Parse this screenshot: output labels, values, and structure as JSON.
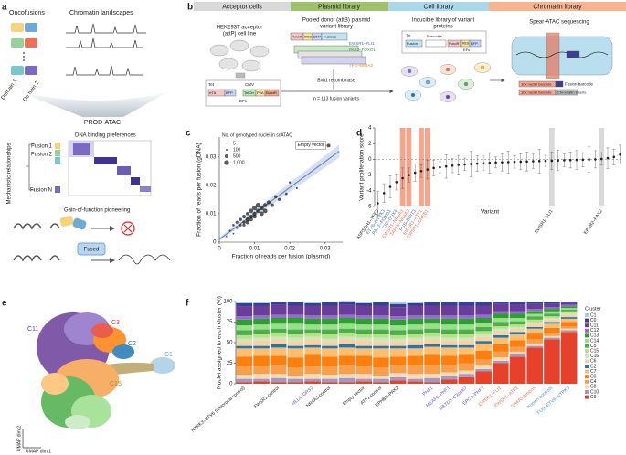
{
  "panel_labels": [
    "a",
    "b",
    "c",
    "d",
    "e",
    "f"
  ],
  "panel_a": {
    "oncofusions": "Oncofusions",
    "chromatin_landscapes": "Chromatin landscapes",
    "domain_1": "Domain 1",
    "domain_2": "Domain 2",
    "method": "PROD-ATAC",
    "dna_binding": "DNA binding preferences",
    "fusion_1": "Fusion 1",
    "fusion_2": "Fusion 2",
    "fusion_n": "Fusion N",
    "mechanistic": "Mechanistic relationships",
    "pioneering": "Gain-of-function pioneering",
    "fused": "Fused"
  },
  "panel_b": {
    "steps": [
      "Acceptor cells",
      "Plasmid library",
      "Cell library",
      "Chromatin library"
    ],
    "acceptor": [
      "HEK293T acceptor",
      "(attP) cell line"
    ],
    "donor": [
      "Pooled donor (attB) plasmid",
      "variant library"
    ],
    "inducible": [
      "Inducible library of variant",
      "proteins"
    ],
    "spear": "Spear-ATAC sequencing",
    "recombinase": "Bxb1 recombinase",
    "n_variants": "n = 113 fusion variants",
    "construct_labels": [
      "Tet",
      "CMV",
      "EFs",
      "rtTA",
      "BFP",
      "TetOn",
      "P2A",
      "BlastR"
    ],
    "donor_labels": [
      "PuroR",
      "IRES",
      "BFP",
      "Fusions",
      "EWSR1–FLI1",
      "PAX3–FOXO1",
      "TFG–NR4A3"
    ],
    "inducible_labels": [
      "Tet",
      "Fusion",
      "Barcodes",
      "PuroR",
      "IRES",
      "BFP",
      "EFs"
    ],
    "spear_labels": [
      "Fusion barcode",
      "10x nuclei barcode",
      "Chromatin inserts"
    ]
  },
  "panel_e": {
    "clusters": [
      "C3",
      "C2",
      "C1",
      "C11",
      "C15"
    ],
    "dim1": "UMAP dim 1",
    "dim2": "UMAP dim 2"
  },
  "chart_data": [
    {
      "type": "scatter",
      "xlabel": "Fraction of reads per fusion (plasmid)",
      "ylabel": "Fraction of reads per fusion (gDNA)",
      "xlim": [
        0,
        0.035
      ],
      "ylim": [
        0,
        0.037
      ],
      "xticks": [
        0,
        0.01,
        0.02,
        0.03
      ],
      "yticks": [
        0,
        0.01,
        0.02,
        0.03
      ],
      "color": "#222222",
      "x": [
        0.002,
        0.003,
        0.004,
        0.004,
        0.005,
        0.005,
        0.006,
        0.006,
        0.007,
        0.007,
        0.007,
        0.008,
        0.008,
        0.008,
        0.009,
        0.009,
        0.009,
        0.01,
        0.01,
        0.01,
        0.011,
        0.011,
        0.012,
        0.012,
        0.013,
        0.013,
        0.014,
        0.015,
        0.016,
        0.017,
        0.019,
        0.02,
        0.022,
        0.031
      ],
      "y": [
        0.002,
        0.004,
        0.003,
        0.006,
        0.005,
        0.007,
        0.006,
        0.008,
        0.007,
        0.009,
        0.006,
        0.008,
        0.01,
        0.007,
        0.009,
        0.011,
        0.008,
        0.01,
        0.012,
        0.009,
        0.011,
        0.013,
        0.01,
        0.012,
        0.013,
        0.011,
        0.014,
        0.013,
        0.016,
        0.015,
        0.017,
        0.021,
        0.019,
        0.034
      ],
      "sizes": [
        50,
        100,
        80,
        200,
        150,
        300,
        250,
        400,
        350,
        500,
        300,
        600,
        450,
        700,
        500,
        800,
        600,
        650,
        900,
        700,
        750,
        1000,
        800,
        900,
        700,
        850,
        600,
        500,
        400,
        300,
        200,
        150,
        100,
        500
      ],
      "fit": {
        "x": [
          0,
          0.034
        ],
        "y": [
          0.001,
          0.032
        ],
        "color": "#5b7fc0"
      },
      "annotation": "Empty vector",
      "legend_title": "No. of genotyped nuclei in scATAC",
      "legend_sizes": [
        5,
        100,
        500,
        {
          "value": 1000,
          "label": "1,000"
        }
      ]
    },
    {
      "type": "dot",
      "xlabel": "Variant",
      "ylabel": "Variant proliferation score",
      "ylim": [
        -6,
        4
      ],
      "yticks": [
        -6,
        -4,
        -2,
        0,
        2,
        4
      ],
      "color": "#222222",
      "categories": [
        "ASPSCR1–TFE3",
        "ETV6–NTRK3",
        "PAX3–FOXO1",
        "CIC–DUX4",
        "EWSR1–NR4A3",
        "TAF15–NR4A3",
        "FUS–DDIT3",
        "EWSR1–ATF1",
        "EWSR1–CREB1",
        null,
        null,
        null,
        null,
        null,
        null,
        null,
        null,
        null,
        null,
        null,
        null,
        null,
        null,
        null,
        null,
        null,
        null,
        null,
        "EWSR1–FLI1",
        null,
        null,
        null,
        null,
        null,
        null,
        null,
        "EPHB2–PAX2",
        null,
        null,
        null
      ],
      "label_colors": [
        "#222222",
        "#4a6fb5",
        "#4a6fb5",
        "#4a6fb5",
        "#e8735a",
        "#e8735a",
        "#4a6fb5",
        "#e8735a",
        "#e8735a",
        null,
        null,
        null,
        null,
        null,
        null,
        null,
        null,
        null,
        null,
        null,
        null,
        null,
        null,
        null,
        null,
        null,
        null,
        null,
        "#222222",
        null,
        null,
        null,
        null,
        null,
        null,
        null,
        "#222222",
        null,
        null,
        null
      ],
      "bands": [
        null,
        null,
        null,
        null,
        "#f4a58e",
        "#f4a58e",
        null,
        "#f4a58e",
        "#f4a58e",
        null,
        null,
        null,
        null,
        null,
        null,
        null,
        null,
        null,
        null,
        null,
        null,
        null,
        null,
        null,
        null,
        null,
        null,
        null,
        "#d9d9d9",
        null,
        null,
        null,
        null,
        null,
        null,
        null,
        "#d9d9d9",
        null,
        null,
        null
      ],
      "values": [
        -5.6,
        -4.3,
        -3.5,
        -2.9,
        -2.4,
        -2.0,
        -1.7,
        -1.5,
        -1.3,
        -1.1,
        -1.0,
        -0.9,
        -0.8,
        -0.7,
        -0.65,
        -0.6,
        -0.55,
        -0.5,
        -0.45,
        -0.4,
        -0.38,
        -0.35,
        -0.32,
        -0.3,
        -0.28,
        -0.25,
        -0.22,
        -0.2,
        -0.18,
        -0.15,
        -0.12,
        -0.1,
        -0.08,
        -0.05,
        -0.02,
        0.0,
        0.05,
        0.15,
        0.3,
        0.6
      ],
      "errors": [
        1.5,
        1.2,
        1.4,
        1.0,
        1.3,
        0.9,
        1.1,
        0.8,
        1.2,
        1.0,
        0.7,
        1.5,
        0.9,
        1.2,
        0.8,
        1.6,
        1.0,
        0.9,
        1.3,
        0.7,
        1.1,
        1.4,
        0.8,
        1.0,
        1.2,
        0.9,
        1.5,
        0.7,
        1.1,
        1.3,
        0.8,
        1.0,
        1.2,
        0.9,
        1.6,
        1.1,
        0.8,
        1.3,
        1.0,
        1.2
      ]
    },
    {
      "type": "stacked_bar",
      "ylabel": "Nuclei assigned to each cluster (%)",
      "legend_title": "Cluster",
      "ylim": [
        0,
        100
      ],
      "yticks": [
        0,
        25,
        50,
        75,
        100
      ],
      "categories": [
        "NTRK3–ETV6 (reciprocal control)",
        null,
        "EWSR1 control",
        null,
        "MLL4–GRS2",
        "NR4A3 control",
        null,
        "Empty vector",
        "ATF1 control",
        "EPHB2–PAX2",
        null,
        "PHF1",
        "MEAF6–PHF1",
        "MBTD1–CXorf67",
        "EPC1–PHF1",
        "EWSR1–FLI1",
        "EWSR1–ATF1",
        "NR4A3 fusions",
        "Known controls",
        "FUS–ETV6–NTRK3"
      ],
      "label_colors": [
        "#222222",
        null,
        "#222222",
        null,
        "#6a51c8",
        "#222222",
        null,
        "#222222",
        "#222222",
        "#222222",
        null,
        "#6a51c8",
        "#6a51c8",
        "#6a51c8",
        "#6a51c8",
        "#e8735a",
        "#e8735a",
        "#e8735a",
        "#4a8fc0",
        "#4a8fc0"
      ],
      "series": [
        {
          "name": "C1",
          "color": "#a6cee3",
          "values": [
            2,
            2,
            0,
            1,
            2,
            1,
            1,
            2,
            1,
            3,
            2,
            1,
            1,
            1,
            1,
            0,
            1,
            1,
            1,
            0
          ]
        },
        {
          "name": "C0",
          "color": "#3a3f8f",
          "values": [
            4,
            3,
            4,
            4,
            3,
            4,
            4,
            3,
            4,
            4,
            3,
            4,
            4,
            4,
            4,
            3,
            3,
            2,
            2,
            1
          ]
        },
        {
          "name": "C11",
          "color": "#6a3d9a",
          "values": [
            12,
            12,
            12,
            11,
            12,
            12,
            12,
            12,
            12,
            11,
            12,
            12,
            12,
            12,
            11,
            9,
            8,
            6,
            4,
            3
          ]
        },
        {
          "name": "C12",
          "color": "#8f6fc7",
          "values": [
            4,
            4,
            4,
            4,
            4,
            4,
            4,
            4,
            4,
            4,
            4,
            4,
            4,
            4,
            4,
            3,
            3,
            3,
            2,
            2
          ]
        },
        {
          "name": "C13",
          "color": "#2ca02c",
          "values": [
            7,
            7,
            7,
            7,
            7,
            7,
            7,
            7,
            7,
            7,
            7,
            6,
            7,
            7,
            6,
            5,
            5,
            3,
            3,
            2
          ]
        },
        {
          "name": "C14",
          "color": "#98df8a",
          "values": [
            6,
            6,
            6,
            7,
            6,
            6,
            6,
            6,
            6,
            6,
            6,
            6,
            6,
            6,
            5,
            5,
            4,
            3,
            3,
            2
          ]
        },
        {
          "name": "C5",
          "color": "#4daf4a",
          "values": [
            6,
            6,
            6,
            6,
            5,
            6,
            6,
            6,
            6,
            6,
            6,
            6,
            6,
            6,
            5,
            5,
            4,
            4,
            3,
            2
          ]
        },
        {
          "name": "C15",
          "color": "#b8e186",
          "values": [
            4,
            4,
            4,
            4,
            4,
            5,
            4,
            4,
            4,
            4,
            4,
            4,
            4,
            4,
            4,
            3,
            3,
            3,
            2,
            2
          ]
        },
        {
          "name": "C16",
          "color": "#c7e9c0",
          "values": [
            3,
            3,
            3,
            4,
            3,
            3,
            3,
            3,
            4,
            3,
            3,
            3,
            3,
            3,
            3,
            3,
            2,
            2,
            2,
            2
          ]
        },
        {
          "name": "C6",
          "color": "#fdd0a2",
          "values": [
            6,
            7,
            6,
            6,
            7,
            6,
            6,
            7,
            6,
            6,
            6,
            6,
            6,
            6,
            5,
            5,
            4,
            4,
            3,
            3
          ]
        },
        {
          "name": "C2",
          "color": "#1f78b4",
          "values": [
            3,
            3,
            4,
            3,
            3,
            3,
            4,
            3,
            3,
            3,
            4,
            3,
            3,
            3,
            3,
            3,
            3,
            2,
            2,
            2
          ]
        },
        {
          "name": "C7",
          "color": "#fdbf6f",
          "values": [
            10,
            9,
            10,
            11,
            9,
            10,
            10,
            9,
            11,
            10,
            9,
            10,
            10,
            9,
            9,
            8,
            7,
            6,
            5,
            4
          ]
        },
        {
          "name": "C3",
          "color": "#ff7f0e",
          "values": [
            12,
            13,
            11,
            12,
            14,
            12,
            11,
            13,
            12,
            11,
            12,
            13,
            11,
            10,
            10,
            9,
            8,
            7,
            6,
            5
          ]
        },
        {
          "name": "C4",
          "color": "#f6a04d",
          "values": [
            10,
            9,
            11,
            10,
            9,
            10,
            11,
            9,
            10,
            9,
            10,
            10,
            9,
            9,
            8,
            7,
            6,
            5,
            4,
            3
          ]
        },
        {
          "name": "C8",
          "color": "#ffd9b3",
          "values": [
            5,
            6,
            5,
            4,
            6,
            5,
            5,
            6,
            4,
            5,
            6,
            5,
            5,
            4,
            4,
            4,
            3,
            3,
            2,
            2
          ]
        },
        {
          "name": "C10",
          "color": "#9e9ac8",
          "values": [
            4,
            3,
            5,
            4,
            3,
            4,
            5,
            3,
            4,
            4,
            3,
            5,
            4,
            4,
            3,
            3,
            3,
            2,
            2,
            2
          ]
        },
        {
          "name": "C9",
          "color": "#e6412b",
          "values": [
            2,
            3,
            2,
            2,
            3,
            2,
            2,
            3,
            2,
            4,
            3,
            2,
            5,
            8,
            15,
            25,
            33,
            44,
            54,
            63
          ]
        }
      ]
    }
  ]
}
